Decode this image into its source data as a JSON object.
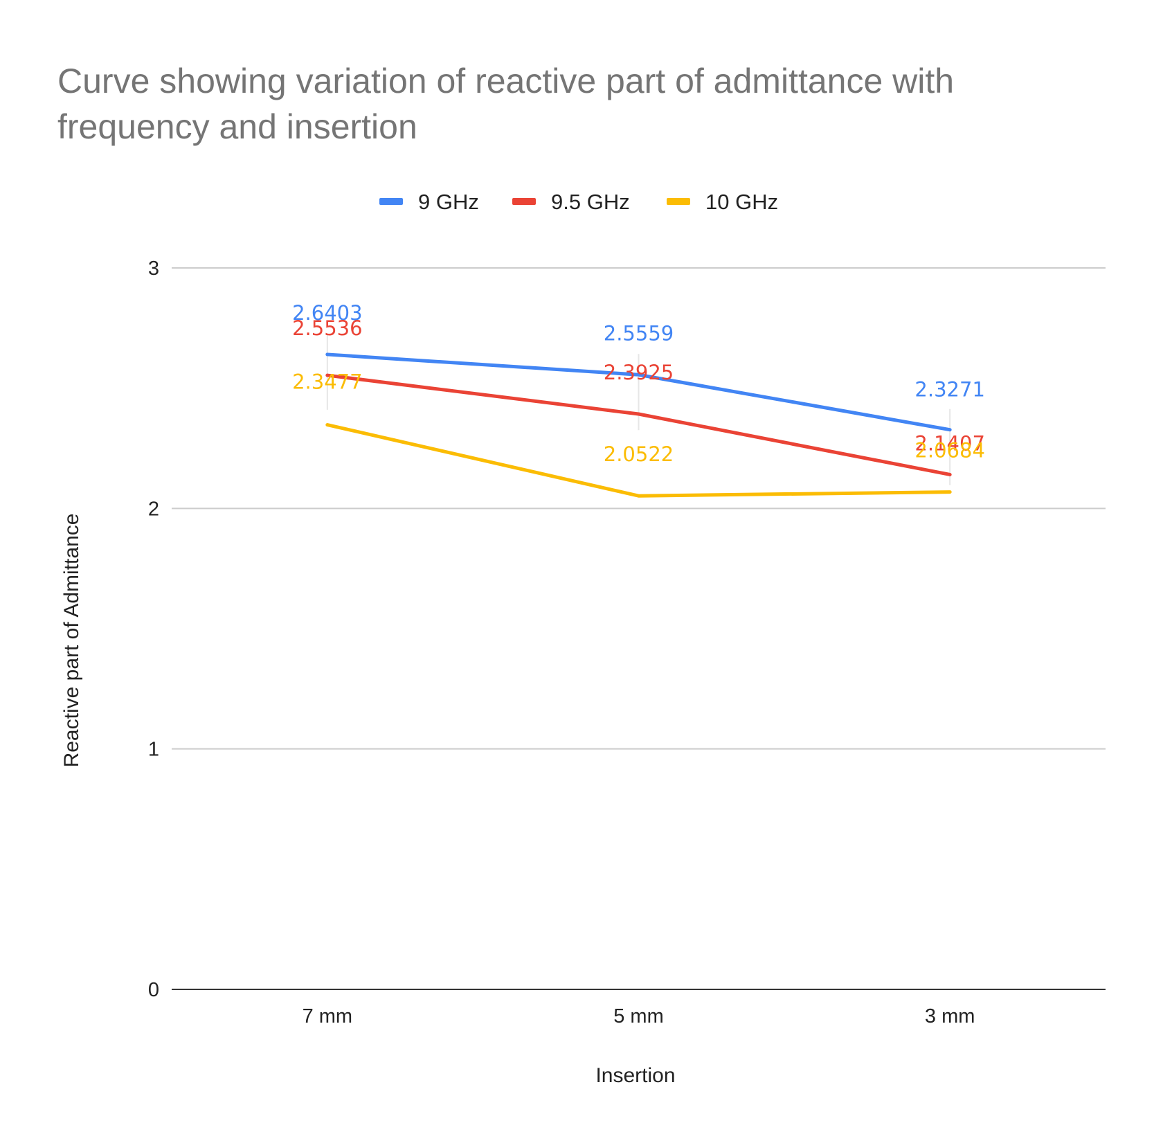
{
  "chart_data": {
    "type": "line",
    "title_lines": [
      "Curve showing variation of reactive part of admittance with",
      "frequency and insertion"
    ],
    "xlabel": "Insertion",
    "ylabel": "Reactive part of Admittance",
    "categories": [
      "7 mm",
      "5 mm",
      "3 mm"
    ],
    "ylim": [
      0,
      3
    ],
    "yticks": [
      "0",
      "1",
      "2",
      "3"
    ],
    "grid": true,
    "legend_position": "top-center",
    "series": [
      {
        "name": "9 GHz",
        "color": "#4285F4",
        "values": [
          2.6403,
          2.5559,
          2.3271
        ],
        "labels": [
          "2.6403",
          "2.5559",
          "2.3271"
        ]
      },
      {
        "name": "9.5 GHz",
        "color": "#EA4335",
        "values": [
          2.5536,
          2.3925,
          2.1407
        ],
        "labels": [
          "2.5536",
          "2.3925",
          "2.1407"
        ]
      },
      {
        "name": "10 GHz",
        "color": "#FBBC04",
        "values": [
          2.3477,
          2.0522,
          2.0684
        ],
        "labels": [
          "2.3477",
          "2.0522",
          "2.0684"
        ]
      }
    ]
  }
}
